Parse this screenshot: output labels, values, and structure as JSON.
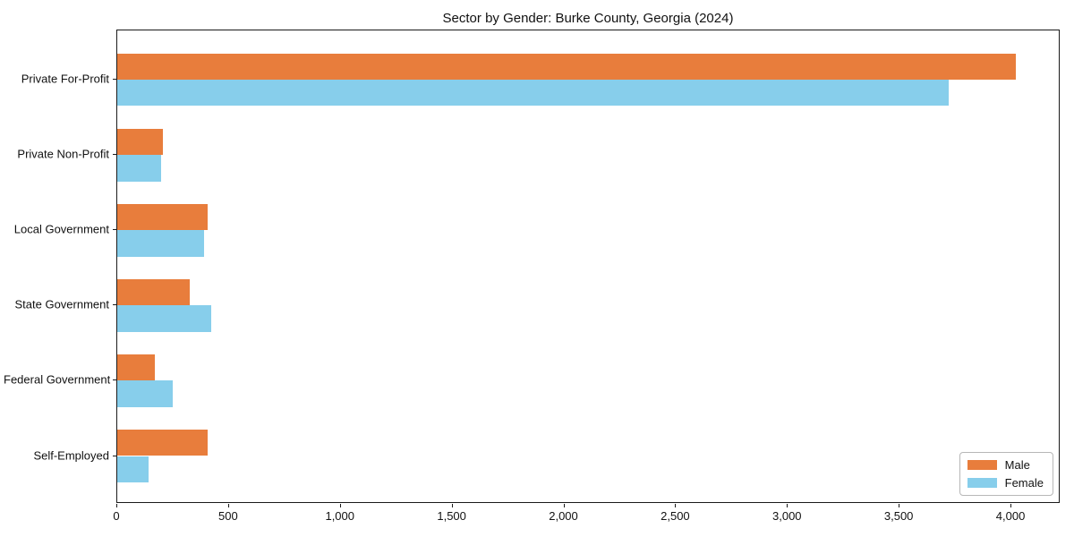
{
  "chart_data": {
    "type": "bar",
    "orientation": "horizontal",
    "title": "Sector by Gender: Burke County, Georgia (2024)",
    "categories": [
      "Private For-Profit",
      "Private Non-Profit",
      "Local Government",
      "State Government",
      "Federal Government",
      "Self-Employed"
    ],
    "series": [
      {
        "name": "Male",
        "color": "#e87d3c",
        "values": [
          4020,
          205,
          405,
          325,
          170,
          405
        ]
      },
      {
        "name": "Female",
        "color": "#87ceeb",
        "values": [
          3720,
          195,
          390,
          420,
          250,
          140
        ]
      }
    ],
    "xlabel": "",
    "ylabel": "",
    "xlim": [
      0,
      4220
    ],
    "xticks": [
      0,
      500,
      1000,
      1500,
      2000,
      2500,
      3000,
      3500,
      4000
    ],
    "xtick_labels": [
      "0",
      "500",
      "1,000",
      "1,500",
      "2,000",
      "2,500",
      "3,000",
      "3,500",
      "4,000"
    ],
    "grid": false,
    "legend": {
      "position": "lower right"
    },
    "bar_width_fraction": 0.35,
    "colors": {
      "axis": "#1a1a1a",
      "background": "#ffffff"
    }
  }
}
